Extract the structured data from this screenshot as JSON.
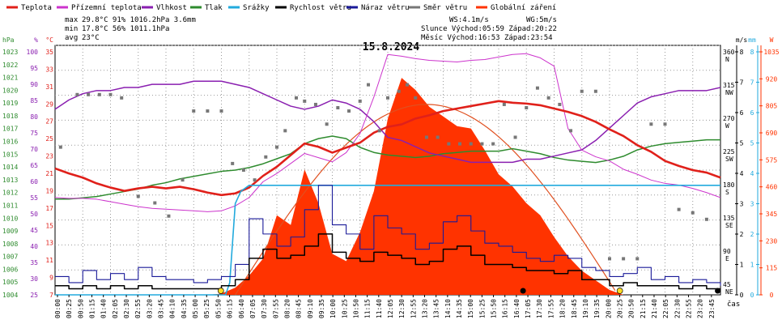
{
  "legend": [
    {
      "label": "Teplota",
      "color": "#e0201a"
    },
    {
      "label": "Přízemní teplota",
      "color": "#cc33cc"
    },
    {
      "label": "Vlhkost",
      "color": "#8a1fb0"
    },
    {
      "label": "Tlak",
      "color": "#2e8b2e"
    },
    {
      "label": "Srážky",
      "color": "#22aadd"
    },
    {
      "label": "Rychlost větru",
      "color": "#000000"
    },
    {
      "label": "Náraz větru",
      "color": "#1a1a99"
    },
    {
      "label": "Směr větru",
      "color": "#777777"
    },
    {
      "label": "Globální záření",
      "color": "#ff3300"
    }
  ],
  "stats": {
    "max_label": "max",
    "max_values": "29.8°C  91%  1016.2hPa   3.6mm",
    "min_label": "min",
    "min_values": "17.8°C  56%  1011.1hPa",
    "avg_label": "avg",
    "avg_values": "23°C",
    "ws": "WS:4.1m/s",
    "wg": "WG:5m/s",
    "sun": "Slunce Východ:05:59  Západ:20:22",
    "moon": "Měsíc  Východ:16:53  Západ:23:54"
  },
  "chart_data": {
    "type": "line",
    "title": "15.8.2024",
    "xlabel": "čas",
    "x_ticks": [
      "00:00",
      "00:25",
      "00:50",
      "01:15",
      "01:40",
      "02:05",
      "02:30",
      "02:55",
      "03:20",
      "03:45",
      "04:10",
      "04:35",
      "05:00",
      "05:25",
      "05:50",
      "06:15",
      "06:40",
      "07:05",
      "07:30",
      "07:55",
      "08:20",
      "08:45",
      "09:10",
      "09:35",
      "10:00",
      "10:25",
      "10:50",
      "11:15",
      "11:40",
      "12:05",
      "12:30",
      "12:55",
      "13:20",
      "13:45",
      "14:10",
      "14:35",
      "15:00",
      "15:25",
      "15:50",
      "16:15",
      "16:40",
      "17:05",
      "17:30",
      "17:55",
      "18:20",
      "18:45",
      "19:10",
      "19:35",
      "20:00",
      "20:25",
      "20:50",
      "21:15",
      "21:40",
      "22:05",
      "22:30",
      "22:55",
      "23:20",
      "23:45"
    ],
    "axes": {
      "hpa": {
        "unit": "hPa",
        "ticks": [
          "1023",
          "1022",
          "1021",
          "1020",
          "1019",
          "1018",
          "1017",
          "1016",
          "1015",
          "1014",
          "1013",
          "1012",
          "1011",
          "1010",
          "1009",
          "1008",
          "1007",
          "1006",
          "1005",
          "1004"
        ],
        "color": "#2e8b2e"
      },
      "pct": {
        "unit": "%",
        "ticks": [
          "100",
          "95",
          "90",
          "85",
          "80",
          "75",
          "70",
          "65",
          "60",
          "55",
          "50",
          "45",
          "40",
          "35",
          "30",
          "25"
        ],
        "color": "#8a1fb0"
      },
      "degc": {
        "unit": "°C",
        "ticks": [
          "35",
          "33",
          "31",
          "29",
          "27",
          "25",
          "23",
          "21",
          "19",
          "17",
          "15",
          "13",
          "11",
          "9",
          "7"
        ],
        "color": "#e0201a"
      },
      "ms": {
        "unit": "m/s",
        "ticks": [
          "8",
          "7",
          "6",
          "5",
          "4",
          "3",
          "2",
          "1",
          "0"
        ],
        "color": "#000000"
      },
      "mm": {
        "unit": "mm",
        "ticks": [
          "8",
          "7",
          "6",
          "5",
          "4",
          "3",
          "2",
          "1",
          "0"
        ],
        "color": "#22aadd"
      },
      "w": {
        "unit": "W",
        "ticks": [
          "1035",
          "920",
          "805",
          "690",
          "575",
          "460",
          "345",
          "230",
          "115",
          "0"
        ],
        "color": "#ff3300"
      },
      "dir": {
        "ticks": [
          {
            "deg": "360",
            "name": "N"
          },
          {
            "deg": "315",
            "name": "NW"
          },
          {
            "deg": "270",
            "name": "W"
          },
          {
            "deg": "225",
            "name": "SW"
          },
          {
            "deg": "180",
            "name": "S"
          },
          {
            "deg": "135",
            "name": "SE"
          },
          {
            "deg": "90",
            "name": "E"
          },
          {
            "deg": "45",
            "name": "NE"
          }
        ]
      }
    },
    "series": [
      {
        "name": "Teplota",
        "unit": "°C",
        "x": [
          0,
          0.5,
          1,
          1.5,
          2,
          2.5,
          3,
          3.5,
          4,
          4.5,
          5,
          5.5,
          6,
          6.5,
          7,
          7.5,
          8,
          8.5,
          9,
          9.5,
          10,
          10.5,
          11,
          11.5,
          12,
          12.5,
          13,
          13.5,
          14,
          14.5,
          15,
          15.5,
          16,
          16.5,
          17,
          17.5,
          18,
          18.5,
          19,
          19.5,
          20,
          20.5,
          21,
          21.5,
          22,
          22.5,
          23,
          23.5,
          24
        ],
        "y": [
          21.2,
          20.6,
          20.1,
          19.4,
          18.9,
          18.5,
          18.8,
          19.0,
          18.8,
          19.0,
          18.7,
          18.3,
          18.0,
          18.2,
          18.9,
          20.3,
          21.4,
          22.8,
          24.2,
          23.8,
          23.1,
          23.7,
          24.3,
          25.5,
          26.2,
          26.5,
          27.2,
          27.6,
          28.1,
          28.4,
          28.7,
          29.0,
          29.3,
          29.1,
          29.0,
          28.8,
          28.4,
          28.0,
          27.5,
          26.8,
          25.9,
          25.1,
          24.0,
          23.2,
          22.1,
          21.5,
          21.0,
          20.7,
          20.1
        ]
      },
      {
        "name": "Přízemní teplota",
        "unit": "°C",
        "x": [
          0,
          0.5,
          1,
          1.5,
          2,
          2.5,
          3,
          3.5,
          4,
          4.5,
          5,
          5.5,
          6,
          6.5,
          7,
          7.5,
          8,
          8.5,
          9,
          9.5,
          10,
          10.5,
          11,
          11.5,
          12,
          12.5,
          13,
          13.5,
          14,
          14.5,
          15,
          15.5,
          16,
          16.5,
          17,
          17.5,
          18,
          18.5,
          19,
          19.5,
          20,
          20.5,
          21,
          21.5,
          22,
          22.5,
          23,
          23.5,
          24
        ],
        "y": [
          17.7,
          17.6,
          17.6,
          17.5,
          17.2,
          16.9,
          16.6,
          16.4,
          16.3,
          16.2,
          16.1,
          16.0,
          16.1,
          16.7,
          17.7,
          19.6,
          20.6,
          21.8,
          23.0,
          22.5,
          22.0,
          23.1,
          25.4,
          29.8,
          34.9,
          34.7,
          34.4,
          34.2,
          34.1,
          34.0,
          34.2,
          34.3,
          34.6,
          34.9,
          35.0,
          34.5,
          33.5,
          26.0,
          23.4,
          22.6,
          22.1,
          21.1,
          20.5,
          19.8,
          19.4,
          19.2,
          18.8,
          18.3,
          17.7
        ]
      },
      {
        "name": "Vlhkost",
        "unit": "%",
        "x": [
          0,
          0.5,
          1,
          1.5,
          2,
          2.5,
          3,
          3.5,
          4,
          4.5,
          5,
          5.5,
          6,
          6.5,
          7,
          7.5,
          8,
          8.5,
          9,
          9.5,
          10,
          10.5,
          11,
          11.5,
          12,
          12.5,
          13,
          13.5,
          14,
          14.5,
          15,
          15.5,
          16,
          16.5,
          17,
          17.5,
          18,
          18.5,
          19,
          19.5,
          20,
          20.5,
          21,
          21.5,
          22,
          22.5,
          23,
          23.5,
          24
        ],
        "y": [
          82,
          85,
          87,
          88,
          88,
          89,
          89,
          90,
          90,
          90,
          91,
          91,
          91,
          90,
          89,
          87,
          85,
          83,
          82,
          83,
          85,
          84,
          82,
          78,
          73,
          72,
          70,
          68,
          67,
          66,
          65,
          65,
          65,
          65,
          66,
          66,
          67,
          68,
          69,
          72,
          76,
          80,
          84,
          86,
          87,
          88,
          88,
          88,
          89
        ]
      },
      {
        "name": "Tlak",
        "unit": "hPa",
        "x": [
          0,
          0.5,
          1,
          1.5,
          2,
          2.5,
          3,
          3.5,
          4,
          4.5,
          5,
          5.5,
          6,
          6.5,
          7,
          7.5,
          8,
          8.5,
          9,
          9.5,
          10,
          10.5,
          11,
          11.5,
          12,
          12.5,
          13,
          13.5,
          14,
          14.5,
          15,
          15.5,
          16,
          16.5,
          17,
          17.5,
          18,
          18.5,
          19,
          19.5,
          20,
          20.5,
          21,
          21.5,
          22,
          22.5,
          23,
          23.5,
          24
        ],
        "y": [
          1011.2,
          1011.2,
          1011.3,
          1011.4,
          1011.6,
          1011.8,
          1012.0,
          1012.3,
          1012.5,
          1012.8,
          1013.0,
          1013.2,
          1013.4,
          1013.5,
          1013.7,
          1014.0,
          1014.4,
          1014.8,
          1015.6,
          1016.0,
          1016.2,
          1016.0,
          1015.3,
          1014.9,
          1014.7,
          1014.6,
          1014.5,
          1014.6,
          1014.8,
          1014.9,
          1015.0,
          1015.0,
          1015.0,
          1015.2,
          1015.0,
          1014.8,
          1014.5,
          1014.3,
          1014.2,
          1014.1,
          1014.3,
          1014.6,
          1015.1,
          1015.4,
          1015.6,
          1015.7,
          1015.8,
          1015.9,
          1015.9
        ]
      },
      {
        "name": "Srážky",
        "unit": "mm",
        "x": [
          0,
          6.15,
          6.3,
          6.5,
          6.7,
          7.0,
          7.3,
          24
        ],
        "y": [
          0,
          0,
          0.4,
          3.0,
          3.4,
          3.6,
          3.6,
          3.6
        ]
      },
      {
        "name": "Rychlost větru",
        "unit": "m/s",
        "x": [
          0,
          0.5,
          1,
          1.5,
          2,
          2.5,
          3,
          3.5,
          4,
          4.5,
          5,
          5.5,
          6,
          6.5,
          7,
          7.5,
          8,
          8.5,
          9,
          9.5,
          10,
          10.5,
          11,
          11.5,
          12,
          12.5,
          13,
          13.5,
          14,
          14.5,
          15,
          15.5,
          16,
          16.5,
          17,
          17.5,
          18,
          18.5,
          19,
          19.5,
          20,
          20.5,
          21,
          21.5,
          22,
          22.5,
          23,
          23.5,
          24
        ],
        "y": [
          0.3,
          0.2,
          0.3,
          0.2,
          0.3,
          0.2,
          0.3,
          0.2,
          0.2,
          0.2,
          0.2,
          0.2,
          0.3,
          0.5,
          1.2,
          1.5,
          1.2,
          1.3,
          1.6,
          2.0,
          1.4,
          1.2,
          1.1,
          1.4,
          1.3,
          1.2,
          1.0,
          1.1,
          1.5,
          1.6,
          1.3,
          1.0,
          1.0,
          0.9,
          0.8,
          0.8,
          0.7,
          0.8,
          0.5,
          0.5,
          0.3,
          0.4,
          0.3,
          0.3,
          0.3,
          0.2,
          0.3,
          0.2,
          0.2
        ]
      },
      {
        "name": "Náraz větru",
        "unit": "m/s",
        "x": [
          0,
          0.5,
          1,
          1.5,
          2,
          2.5,
          3,
          3.5,
          4,
          4.5,
          5,
          5.5,
          6,
          6.5,
          7,
          7.5,
          8,
          8.5,
          9,
          9.5,
          10,
          10.5,
          11,
          11.5,
          12,
          12.5,
          13,
          13.5,
          14,
          14.5,
          15,
          15.5,
          16,
          16.5,
          17,
          17.5,
          18,
          18.5,
          19,
          19.5,
          20,
          20.5,
          21,
          21.5,
          22,
          22.5,
          23,
          23.5,
          24
        ],
        "y": [
          0.6,
          0.4,
          0.8,
          0.5,
          0.7,
          0.5,
          0.9,
          0.6,
          0.5,
          0.5,
          0.4,
          0.5,
          0.6,
          1.0,
          2.5,
          2.0,
          1.6,
          1.9,
          2.8,
          3.6,
          2.3,
          2.0,
          1.5,
          2.6,
          2.2,
          2.0,
          1.5,
          1.7,
          2.4,
          2.6,
          2.1,
          1.7,
          1.6,
          1.4,
          1.2,
          1.1,
          1.3,
          1.2,
          0.9,
          0.8,
          0.6,
          0.7,
          0.9,
          0.5,
          0.6,
          0.4,
          0.5,
          0.4,
          0.3
        ]
      },
      {
        "name": "Směr větru",
        "unit": "°",
        "x": [
          0.2,
          0.8,
          1.2,
          1.6,
          2.0,
          2.4,
          3.0,
          3.6,
          4.1,
          4.6,
          5.0,
          5.5,
          6.0,
          6.4,
          6.8,
          7.2,
          7.6,
          8.0,
          8.3,
          8.7,
          9.0,
          9.4,
          9.8,
          10.2,
          10.6,
          11.0,
          11.3,
          11.7,
          12.0,
          12.4,
          12.7,
          13.0,
          13.4,
          13.8,
          14.2,
          14.6,
          15.0,
          15.4,
          15.8,
          16.2,
          16.6,
          17.0,
          17.4,
          17.8,
          18.2,
          18.6,
          19.0,
          19.5,
          20.0,
          20.5,
          21.0,
          21.5,
          22.0,
          22.5,
          23.0,
          23.5
        ],
        "y": [
          225,
          305,
          305,
          305,
          305,
          300,
          150,
          140,
          120,
          175,
          280,
          280,
          280,
          200,
          190,
          175,
          210,
          225,
          250,
          300,
          295,
          290,
          260,
          285,
          280,
          295,
          320,
          250,
          300,
          310,
          320,
          300,
          240,
          240,
          230,
          230,
          230,
          230,
          230,
          290,
          240,
          285,
          315,
          300,
          290,
          250,
          310,
          310,
          55,
          55,
          55,
          260,
          260,
          130,
          125,
          115
        ]
      },
      {
        "name": "Globální záření",
        "unit": "W/m²",
        "x": [
          0,
          5.5,
          6,
          6.5,
          7,
          7.5,
          8,
          8.5,
          9,
          9.5,
          10,
          10.5,
          11,
          11.5,
          12,
          12.5,
          13,
          13.5,
          14,
          14.5,
          15,
          15.5,
          16,
          16.5,
          17,
          17.5,
          18,
          18.5,
          19,
          19.5,
          20,
          20.5,
          24
        ],
        "y": [
          0,
          0,
          5,
          30,
          80,
          150,
          330,
          290,
          520,
          380,
          170,
          140,
          260,
          430,
          730,
          900,
          850,
          780,
          740,
          700,
          690,
          600,
          500,
          450,
          380,
          330,
          240,
          160,
          100,
          60,
          20,
          0,
          0
        ]
      }
    ]
  }
}
